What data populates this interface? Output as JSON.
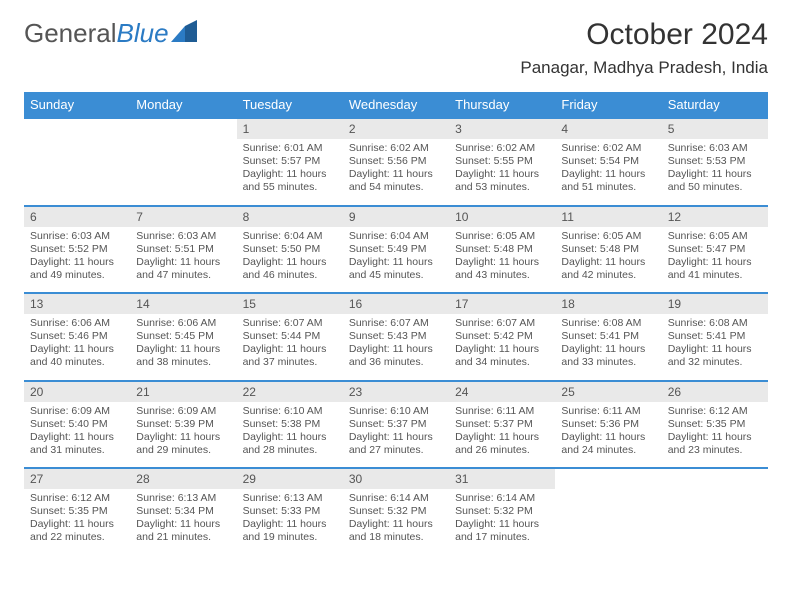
{
  "logo": {
    "text1": "General",
    "text2": "Blue"
  },
  "header": {
    "month_title": "October 2024",
    "location": "Panagar, Madhya Pradesh, India"
  },
  "colors": {
    "header_bg": "#3b8dd4",
    "header_text": "#ffffff",
    "daynum_bg": "#e9e9e9",
    "daynum_text": "#555555",
    "body_text": "#555555",
    "row_border": "#3b8dd4",
    "page_bg": "#ffffff",
    "logo_gray": "#555555",
    "logo_blue": "#2b7bc4"
  },
  "calendar": {
    "type": "table",
    "columns": [
      "Sunday",
      "Monday",
      "Tuesday",
      "Wednesday",
      "Thursday",
      "Friday",
      "Saturday"
    ],
    "fontsize_header": 13,
    "fontsize_daynum": 12,
    "fontsize_body": 10.5,
    "weeks": [
      [
        {
          "day": "",
          "sunrise": "",
          "sunset": "",
          "daylight": ""
        },
        {
          "day": "",
          "sunrise": "",
          "sunset": "",
          "daylight": ""
        },
        {
          "day": "1",
          "sunrise": "Sunrise: 6:01 AM",
          "sunset": "Sunset: 5:57 PM",
          "daylight": "Daylight: 11 hours and 55 minutes."
        },
        {
          "day": "2",
          "sunrise": "Sunrise: 6:02 AM",
          "sunset": "Sunset: 5:56 PM",
          "daylight": "Daylight: 11 hours and 54 minutes."
        },
        {
          "day": "3",
          "sunrise": "Sunrise: 6:02 AM",
          "sunset": "Sunset: 5:55 PM",
          "daylight": "Daylight: 11 hours and 53 minutes."
        },
        {
          "day": "4",
          "sunrise": "Sunrise: 6:02 AM",
          "sunset": "Sunset: 5:54 PM",
          "daylight": "Daylight: 11 hours and 51 minutes."
        },
        {
          "day": "5",
          "sunrise": "Sunrise: 6:03 AM",
          "sunset": "Sunset: 5:53 PM",
          "daylight": "Daylight: 11 hours and 50 minutes."
        }
      ],
      [
        {
          "day": "6",
          "sunrise": "Sunrise: 6:03 AM",
          "sunset": "Sunset: 5:52 PM",
          "daylight": "Daylight: 11 hours and 49 minutes."
        },
        {
          "day": "7",
          "sunrise": "Sunrise: 6:03 AM",
          "sunset": "Sunset: 5:51 PM",
          "daylight": "Daylight: 11 hours and 47 minutes."
        },
        {
          "day": "8",
          "sunrise": "Sunrise: 6:04 AM",
          "sunset": "Sunset: 5:50 PM",
          "daylight": "Daylight: 11 hours and 46 minutes."
        },
        {
          "day": "9",
          "sunrise": "Sunrise: 6:04 AM",
          "sunset": "Sunset: 5:49 PM",
          "daylight": "Daylight: 11 hours and 45 minutes."
        },
        {
          "day": "10",
          "sunrise": "Sunrise: 6:05 AM",
          "sunset": "Sunset: 5:48 PM",
          "daylight": "Daylight: 11 hours and 43 minutes."
        },
        {
          "day": "11",
          "sunrise": "Sunrise: 6:05 AM",
          "sunset": "Sunset: 5:48 PM",
          "daylight": "Daylight: 11 hours and 42 minutes."
        },
        {
          "day": "12",
          "sunrise": "Sunrise: 6:05 AM",
          "sunset": "Sunset: 5:47 PM",
          "daylight": "Daylight: 11 hours and 41 minutes."
        }
      ],
      [
        {
          "day": "13",
          "sunrise": "Sunrise: 6:06 AM",
          "sunset": "Sunset: 5:46 PM",
          "daylight": "Daylight: 11 hours and 40 minutes."
        },
        {
          "day": "14",
          "sunrise": "Sunrise: 6:06 AM",
          "sunset": "Sunset: 5:45 PM",
          "daylight": "Daylight: 11 hours and 38 minutes."
        },
        {
          "day": "15",
          "sunrise": "Sunrise: 6:07 AM",
          "sunset": "Sunset: 5:44 PM",
          "daylight": "Daylight: 11 hours and 37 minutes."
        },
        {
          "day": "16",
          "sunrise": "Sunrise: 6:07 AM",
          "sunset": "Sunset: 5:43 PM",
          "daylight": "Daylight: 11 hours and 36 minutes."
        },
        {
          "day": "17",
          "sunrise": "Sunrise: 6:07 AM",
          "sunset": "Sunset: 5:42 PM",
          "daylight": "Daylight: 11 hours and 34 minutes."
        },
        {
          "day": "18",
          "sunrise": "Sunrise: 6:08 AM",
          "sunset": "Sunset: 5:41 PM",
          "daylight": "Daylight: 11 hours and 33 minutes."
        },
        {
          "day": "19",
          "sunrise": "Sunrise: 6:08 AM",
          "sunset": "Sunset: 5:41 PM",
          "daylight": "Daylight: 11 hours and 32 minutes."
        }
      ],
      [
        {
          "day": "20",
          "sunrise": "Sunrise: 6:09 AM",
          "sunset": "Sunset: 5:40 PM",
          "daylight": "Daylight: 11 hours and 31 minutes."
        },
        {
          "day": "21",
          "sunrise": "Sunrise: 6:09 AM",
          "sunset": "Sunset: 5:39 PM",
          "daylight": "Daylight: 11 hours and 29 minutes."
        },
        {
          "day": "22",
          "sunrise": "Sunrise: 6:10 AM",
          "sunset": "Sunset: 5:38 PM",
          "daylight": "Daylight: 11 hours and 28 minutes."
        },
        {
          "day": "23",
          "sunrise": "Sunrise: 6:10 AM",
          "sunset": "Sunset: 5:37 PM",
          "daylight": "Daylight: 11 hours and 27 minutes."
        },
        {
          "day": "24",
          "sunrise": "Sunrise: 6:11 AM",
          "sunset": "Sunset: 5:37 PM",
          "daylight": "Daylight: 11 hours and 26 minutes."
        },
        {
          "day": "25",
          "sunrise": "Sunrise: 6:11 AM",
          "sunset": "Sunset: 5:36 PM",
          "daylight": "Daylight: 11 hours and 24 minutes."
        },
        {
          "day": "26",
          "sunrise": "Sunrise: 6:12 AM",
          "sunset": "Sunset: 5:35 PM",
          "daylight": "Daylight: 11 hours and 23 minutes."
        }
      ],
      [
        {
          "day": "27",
          "sunrise": "Sunrise: 6:12 AM",
          "sunset": "Sunset: 5:35 PM",
          "daylight": "Daylight: 11 hours and 22 minutes."
        },
        {
          "day": "28",
          "sunrise": "Sunrise: 6:13 AM",
          "sunset": "Sunset: 5:34 PM",
          "daylight": "Daylight: 11 hours and 21 minutes."
        },
        {
          "day": "29",
          "sunrise": "Sunrise: 6:13 AM",
          "sunset": "Sunset: 5:33 PM",
          "daylight": "Daylight: 11 hours and 19 minutes."
        },
        {
          "day": "30",
          "sunrise": "Sunrise: 6:14 AM",
          "sunset": "Sunset: 5:32 PM",
          "daylight": "Daylight: 11 hours and 18 minutes."
        },
        {
          "day": "31",
          "sunrise": "Sunrise: 6:14 AM",
          "sunset": "Sunset: 5:32 PM",
          "daylight": "Daylight: 11 hours and 17 minutes."
        },
        {
          "day": "",
          "sunrise": "",
          "sunset": "",
          "daylight": ""
        },
        {
          "day": "",
          "sunrise": "",
          "sunset": "",
          "daylight": ""
        }
      ]
    ]
  }
}
